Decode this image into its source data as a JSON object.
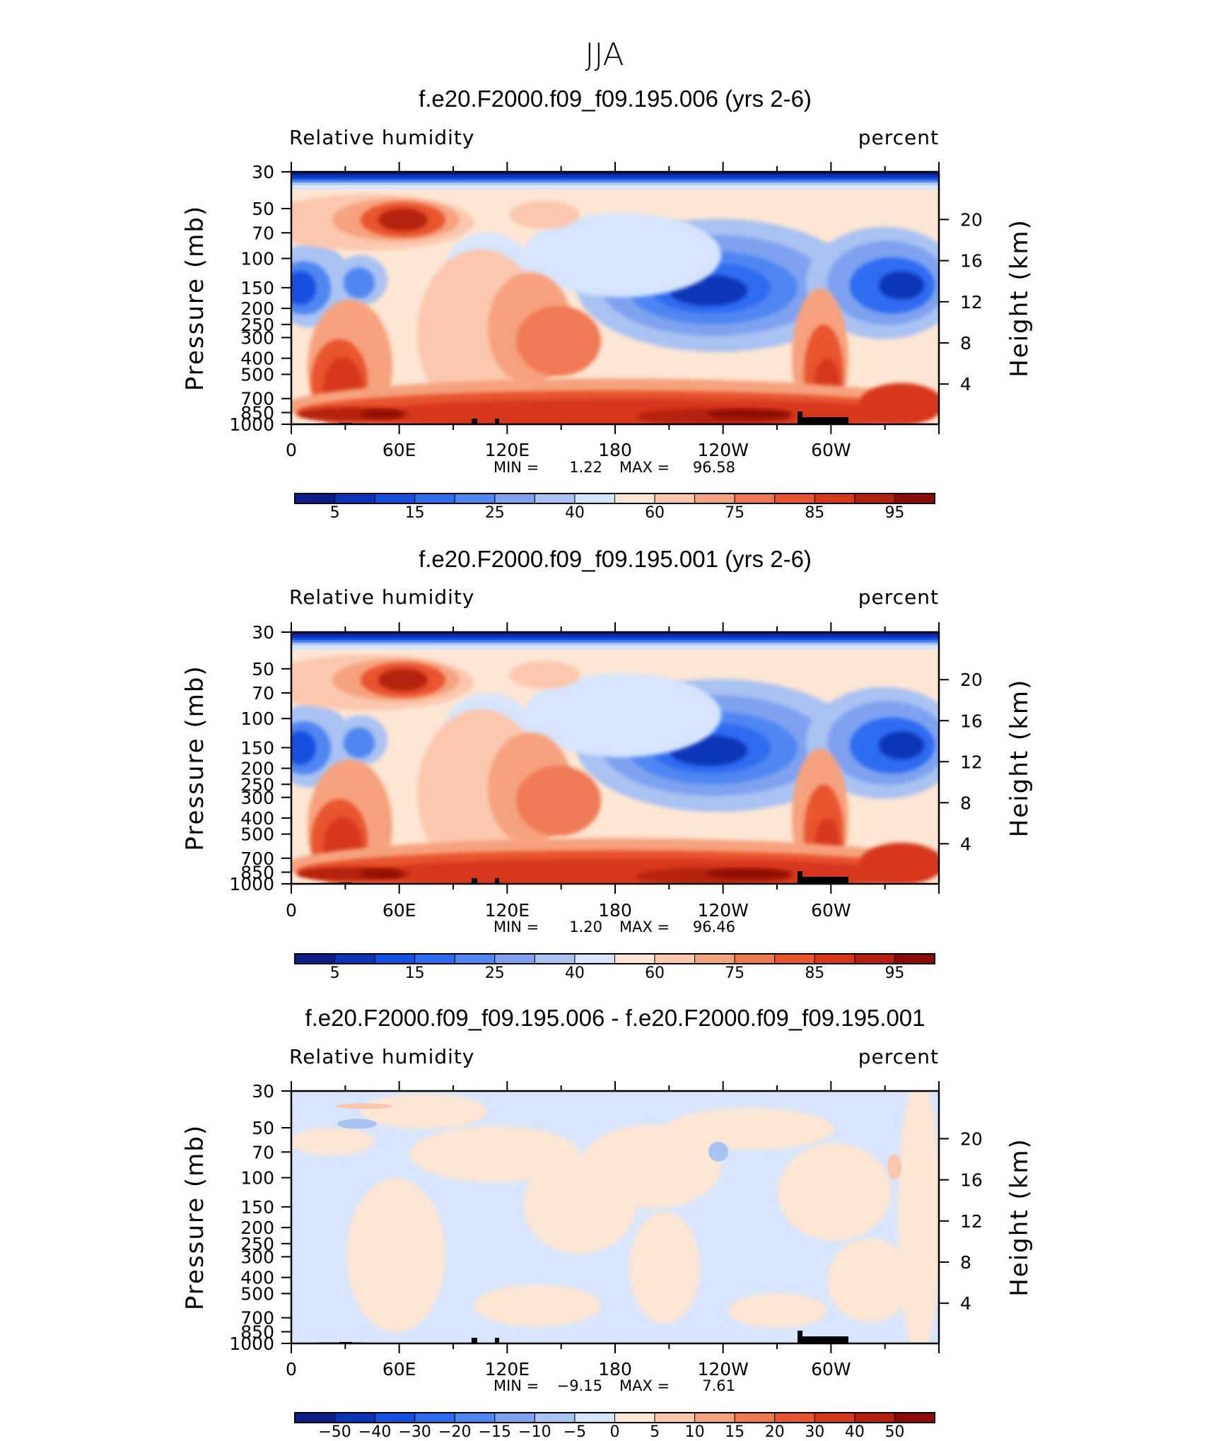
{
  "figure": {
    "title": "JJA"
  },
  "colors": {
    "full_field": [
      "#0b1e8c",
      "#0a35b8",
      "#1450e0",
      "#2e6cf0",
      "#4f86f2",
      "#7ea2f0",
      "#a9c2f2",
      "#d6e5fb",
      "#fde6d4",
      "#fbc8ae",
      "#f6a27e",
      "#ef7a52",
      "#e8552e",
      "#d7381a",
      "#b5200d",
      "#8c0a06"
    ],
    "difference": [
      "#0b1e8c",
      "#0a35b8",
      "#1450e0",
      "#2e6cf0",
      "#4f86f2",
      "#7ea2f0",
      "#a9c2f2",
      "#d6e5fb",
      "#fde6d4",
      "#fbc8ae",
      "#f6a27e",
      "#ef7a52",
      "#e8552e",
      "#d7381a",
      "#b5200d",
      "#8c0a06"
    ],
    "topography": "#000000"
  },
  "chart_data": [
    {
      "type": "heatmap",
      "title": "f.e20.F2000.f09_f09.195.006 (yrs 2-6)",
      "subtitle_left": "Relative humidity",
      "subtitle_right": "percent",
      "ylabel": "Pressure (mb)",
      "ylabel_right": "Height (km)",
      "x_ticks": [
        "0",
        "60E",
        "120E",
        "180",
        "120W",
        "60W"
      ],
      "y_ticks": [
        "30",
        "50",
        "70",
        "100",
        "150",
        "200",
        "250",
        "300",
        "400",
        "500",
        "700",
        "850",
        "1000"
      ],
      "y_ticks_right": [
        "20",
        "16",
        "12",
        "8",
        "4"
      ],
      "min_label": "MIN =",
      "min_value": "1.22",
      "max_label": "MAX =",
      "max_value": "96.58",
      "colorbar_levels": [
        5,
        10,
        15,
        20,
        25,
        30,
        40,
        50,
        60,
        65,
        75,
        80,
        85,
        90,
        95
      ],
      "colorbar_labels": [
        "5",
        "15",
        "25",
        "40",
        "60",
        "75",
        "85",
        "95"
      ]
    },
    {
      "type": "heatmap",
      "title": "f.e20.F2000.f09_f09.195.001 (yrs 2-6)",
      "subtitle_left": "Relative humidity",
      "subtitle_right": "percent",
      "ylabel": "Pressure (mb)",
      "ylabel_right": "Height (km)",
      "x_ticks": [
        "0",
        "60E",
        "120E",
        "180",
        "120W",
        "60W"
      ],
      "y_ticks": [
        "30",
        "50",
        "70",
        "100",
        "150",
        "200",
        "250",
        "300",
        "400",
        "500",
        "700",
        "850",
        "1000"
      ],
      "y_ticks_right": [
        "20",
        "16",
        "12",
        "8",
        "4"
      ],
      "min_label": "MIN =",
      "min_value": "1.20",
      "max_label": "MAX =",
      "max_value": "96.46",
      "colorbar_levels": [
        5,
        10,
        15,
        20,
        25,
        30,
        40,
        50,
        60,
        65,
        75,
        80,
        85,
        90,
        95
      ],
      "colorbar_labels": [
        "5",
        "15",
        "25",
        "40",
        "60",
        "75",
        "85",
        "95"
      ]
    },
    {
      "type": "heatmap",
      "title": "f.e20.F2000.f09_f09.195.006 - f.e20.F2000.f09_f09.195.001",
      "subtitle_left": "Relative humidity",
      "subtitle_right": "percent",
      "ylabel": "Pressure (mb)",
      "ylabel_right": "Height (km)",
      "x_ticks": [
        "0",
        "60E",
        "120E",
        "180",
        "120W",
        "60W"
      ],
      "y_ticks": [
        "30",
        "50",
        "70",
        "100",
        "150",
        "200",
        "250",
        "300",
        "400",
        "500",
        "700",
        "850",
        "1000"
      ],
      "y_ticks_right": [
        "20",
        "16",
        "12",
        "8",
        "4"
      ],
      "min_label": "MIN =",
      "min_value": "−9.15",
      "max_label": "MAX =",
      "max_value": "7.61",
      "colorbar_levels": [
        -50,
        -40,
        -30,
        -20,
        -15,
        -10,
        -5,
        0,
        5,
        10,
        15,
        20,
        30,
        40,
        50
      ],
      "colorbar_labels": [
        "−50",
        "−40",
        "−30",
        "−20",
        "−15",
        "−10",
        "−5",
        "0",
        "5",
        "10",
        "15",
        "20",
        "30",
        "40",
        "50"
      ]
    }
  ]
}
